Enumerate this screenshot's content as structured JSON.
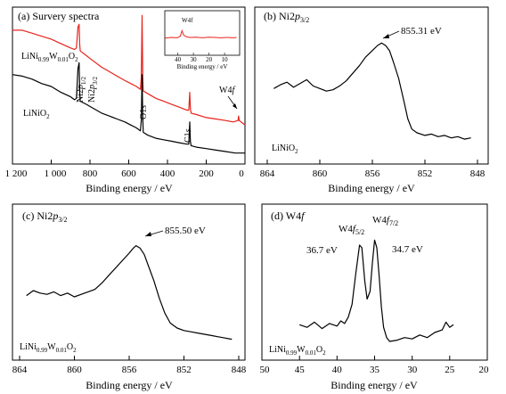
{
  "figure": {
    "xlabel": "Binding energy / eV"
  },
  "chart_data": [
    {
      "id": "a",
      "type": "line",
      "title": "(a) Survery spectra",
      "xlabel": "Binding energy / eV",
      "xlim": [
        1200,
        0
      ],
      "x_ticks": [
        1200,
        1000,
        800,
        600,
        400,
        200,
        0
      ],
      "x_tick_labels": [
        "1 200",
        "1 000",
        "800",
        "600",
        "400",
        "200",
        "0"
      ],
      "ylim": [
        0,
        100
      ],
      "series": [
        {
          "name": "LiNi0.99W0.01O2",
          "color": "#e8231c",
          "x": [
            1200,
            1150,
            1100,
            1050,
            1000,
            950,
            900,
            880,
            870,
            862,
            856,
            853,
            850,
            820,
            780,
            740,
            700,
            660,
            620,
            590,
            560,
            540,
            535,
            531,
            528,
            525,
            500,
            460,
            420,
            380,
            340,
            300,
            290,
            285,
            282,
            278,
            250,
            200,
            150,
            100,
            60,
            36,
            33,
            30,
            10,
            0
          ],
          "y": [
            88,
            88,
            86,
            84,
            82,
            79,
            76,
            75,
            76,
            90,
            92,
            78,
            74,
            71,
            67,
            63,
            60,
            57,
            54,
            52,
            50,
            48,
            56,
            98,
            58,
            47,
            45,
            42,
            40,
            38,
            36,
            34,
            34,
            46,
            35,
            32,
            31,
            29,
            28,
            27,
            26,
            27,
            30,
            27,
            25,
            24
          ]
        },
        {
          "name": "LiNiO2",
          "color": "#000000",
          "x": [
            1200,
            1150,
            1100,
            1050,
            1000,
            950,
            900,
            880,
            870,
            862,
            856,
            853,
            850,
            820,
            780,
            740,
            700,
            660,
            620,
            590,
            560,
            540,
            535,
            531,
            528,
            525,
            500,
            460,
            420,
            380,
            340,
            300,
            290,
            285,
            282,
            278,
            250,
            200,
            150,
            100,
            50,
            0
          ],
          "y": [
            58,
            57,
            55,
            52,
            50,
            46,
            43,
            41,
            42,
            62,
            66,
            46,
            40,
            38,
            35,
            32,
            30,
            28,
            26,
            24,
            22,
            20,
            27,
            58,
            30,
            19,
            17,
            15,
            14,
            13,
            12,
            11,
            11,
            26,
            13,
            10,
            9,
            8,
            7,
            6,
            5,
            5
          ]
        }
      ],
      "annotations": {
        "sample_w": "LiNi0.99W0.01O2",
        "sample_plain": "LiNiO2",
        "ni_1_2": "Ni2p1/2",
        "ni_3_2": "Ni2p3/2",
        "o1s": "O1s",
        "c1s": "C1s",
        "w4f": "W4f"
      },
      "inset": {
        "label": "W4f",
        "xlabel": "Binding energy / eV",
        "xlim": [
          48,
          0
        ],
        "x_ticks": [
          40,
          30,
          20,
          10
        ],
        "x": [
          48,
          44,
          40,
          38,
          37,
          36,
          35,
          34,
          32,
          28,
          24,
          20,
          16,
          12,
          8,
          4,
          2
        ],
        "y": [
          40,
          42,
          41,
          46,
          62,
          50,
          46,
          44,
          42,
          43,
          41,
          43,
          42,
          41,
          42,
          41,
          42
        ]
      }
    },
    {
      "id": "b",
      "type": "line",
      "title": "(b) Ni2p3/2",
      "xlabel": "Binding energy / eV",
      "xlim": [
        864,
        848
      ],
      "x_ticks": [
        864,
        860,
        856,
        852,
        848
      ],
      "ylim": [
        0,
        100
      ],
      "peak_label": "855.31 eV",
      "peak_x": 855.31,
      "sample": "LiNiO2",
      "series": [
        {
          "name": "LiNiO2",
          "color": "#000000",
          "x": [
            863.5,
            863,
            862.5,
            862,
            861.5,
            861,
            860.5,
            860,
            859.5,
            859,
            858.5,
            858,
            857.5,
            857,
            856.5,
            856,
            855.6,
            855.3,
            855,
            854.7,
            854.4,
            854,
            853.6,
            853.3,
            853,
            852.6,
            852,
            851.5,
            851,
            850.5,
            850,
            849.5,
            849,
            848.5
          ],
          "y": [
            54,
            57,
            59,
            55,
            58,
            61,
            56,
            54,
            52,
            53,
            56,
            60,
            66,
            72,
            79,
            84,
            88,
            90,
            88,
            84,
            75,
            62,
            44,
            30,
            22,
            19,
            17,
            18,
            16,
            17,
            15,
            16,
            14,
            15
          ]
        }
      ]
    },
    {
      "id": "c",
      "type": "line",
      "title": "(c) Ni2p3/2",
      "xlabel": "Binding energy / eV",
      "xlim": [
        864,
        848
      ],
      "x_ticks": [
        864,
        860,
        856,
        852,
        848
      ],
      "ylim": [
        0,
        100
      ],
      "peak_label": "855.50 eV",
      "peak_x": 855.5,
      "sample": "LiNi0.99W0.01O2",
      "series": [
        {
          "name": "LiNi0.99W0.01O2",
          "color": "#000000",
          "x": [
            863.5,
            863,
            862.5,
            862,
            861.5,
            861,
            860.5,
            860,
            859.5,
            859,
            858.5,
            858,
            857.5,
            857,
            856.5,
            856,
            855.7,
            855.5,
            855.2,
            854.9,
            854.6,
            854.2,
            853.8,
            853.4,
            853,
            852.5,
            852,
            851.5,
            851,
            850.5,
            850,
            849.5,
            849,
            848.5
          ],
          "y": [
            46,
            50,
            48,
            47,
            49,
            46,
            48,
            45,
            47,
            49,
            51,
            56,
            62,
            68,
            74,
            80,
            84,
            86,
            84,
            79,
            70,
            58,
            44,
            32,
            24,
            20,
            18,
            17,
            16,
            15,
            14,
            13,
            12,
            11
          ]
        }
      ]
    },
    {
      "id": "d",
      "type": "line",
      "title": "(d) W4f",
      "xlabel": "Binding energy / eV",
      "xlim": [
        50,
        20
      ],
      "x_ticks": [
        50,
        45,
        40,
        35,
        30,
        25,
        20
      ],
      "ylim": [
        0,
        100
      ],
      "peak_labels": [
        "W4f5/2",
        "W4f7/2"
      ],
      "peak_values": [
        "36.7 eV",
        "34.7 eV"
      ],
      "sample": "LiNi0.99W0.01O2",
      "series": [
        {
          "name": "LiNi0.99W0.01O2",
          "color": "#000000",
          "x": [
            45,
            44,
            43,
            42,
            41,
            40,
            39.5,
            39,
            38.5,
            38,
            37.5,
            37,
            36.7,
            36.3,
            36,
            35.6,
            35.3,
            35,
            34.7,
            34.4,
            34.1,
            33.8,
            33.4,
            33,
            32,
            31,
            30,
            29,
            28,
            27,
            26,
            25.5,
            25,
            24.5
          ],
          "y": [
            22,
            20,
            24,
            19,
            23,
            21,
            25,
            23,
            28,
            38,
            62,
            84,
            82,
            56,
            42,
            48,
            70,
            88,
            82,
            60,
            36,
            20,
            12,
            9,
            10,
            12,
            11,
            14,
            12,
            16,
            18,
            24,
            20,
            22
          ]
        }
      ]
    }
  ]
}
